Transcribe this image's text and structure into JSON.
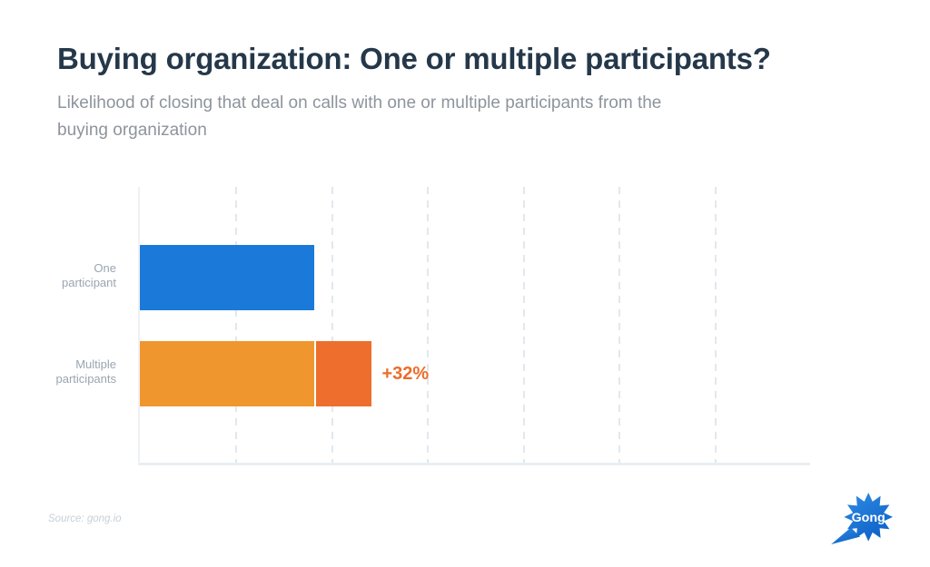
{
  "page": {
    "title": "Buying organization: One or multiple participants?",
    "subtitle": "Likelihood of closing that deal on calls with one or multiple participants from the buying organization",
    "subtitle_lines": [
      "Likelihood of closing that deal on calls with one or multiple participants from the",
      "buying organization"
    ],
    "source": "Source: gong.io"
  },
  "logo": {
    "text": "Gong",
    "color_top": "#2f8ce4",
    "color_bottom": "#0f63c8"
  },
  "chart_data": {
    "type": "bar",
    "orientation": "horizontal",
    "title": "Buying organization: One or multiple participants?",
    "subtitle": "Likelihood of closing that deal on calls with one or multiple participants from the buying organization",
    "categories": [
      "One participant",
      "Multiple participants"
    ],
    "categories_lines": [
      [
        "One",
        "participant"
      ],
      [
        "Multiple",
        "participants"
      ]
    ],
    "values": [
      100,
      132
    ],
    "baseline_value": 100,
    "annotation": "+32%",
    "xlabel": "",
    "ylabel": "",
    "axis_tick_labels_visible": false,
    "grid": "vertical-dashed",
    "grid_intervals": 7,
    "legend": "none",
    "colors": {
      "one_participant": "#1b7ad9",
      "multiple_base": "#f0962f",
      "multiple_extra": "#ed6e2d",
      "annotation_text": "#ed6c2a",
      "gridline": "#e2e8ee",
      "axis": "#e9eef2",
      "category_label": "#9aa5b1",
      "title_text": "#25384a",
      "subtitle_text": "#8d949c"
    }
  }
}
